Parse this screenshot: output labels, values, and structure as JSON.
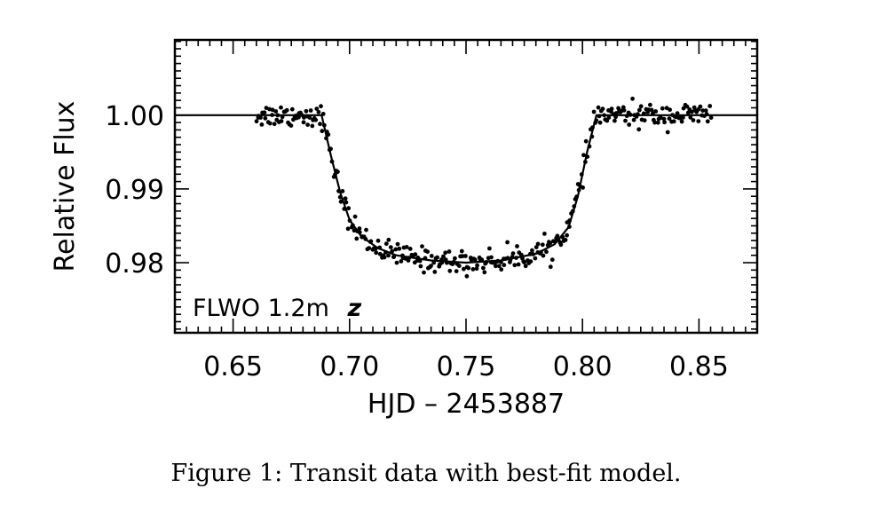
{
  "chart_data": {
    "type": "scatter",
    "xlabel": "HJD – 2453887",
    "ylabel": "Relative Flux",
    "xlim": [
      0.625,
      0.875
    ],
    "ylim": [
      0.9705,
      1.0102
    ],
    "x_ticks": [
      0.65,
      0.7,
      0.75,
      0.8,
      0.85
    ],
    "x_tick_labels": [
      "0.65",
      "0.70",
      "0.75",
      "0.80",
      "0.85"
    ],
    "y_ticks": [
      0.98,
      0.99,
      1.0
    ],
    "y_tick_labels": [
      "0.98",
      "0.99",
      "1.00"
    ],
    "annotation": {
      "text": "FLWO 1.2m",
      "filter": "z"
    },
    "series": [
      {
        "name": "data",
        "kind": "points",
        "x_range": [
          0.66,
          0.855
        ],
        "count": 360,
        "scatter_sigma": 0.0008
      },
      {
        "name": "best-fit model",
        "kind": "line",
        "x": [
          0.625,
          0.688,
          0.692,
          0.696,
          0.7,
          0.705,
          0.712,
          0.72,
          0.735,
          0.75,
          0.765,
          0.78,
          0.788,
          0.794,
          0.798,
          0.802,
          0.806,
          0.875
        ],
        "y": [
          1.0,
          1.0,
          0.9945,
          0.9895,
          0.9858,
          0.9836,
          0.982,
          0.981,
          0.9803,
          0.98,
          0.9803,
          0.9812,
          0.9825,
          0.9848,
          0.989,
          0.995,
          1.0,
          1.0
        ]
      }
    ]
  },
  "caption": "Figure 1: Transit data with best-fit model."
}
